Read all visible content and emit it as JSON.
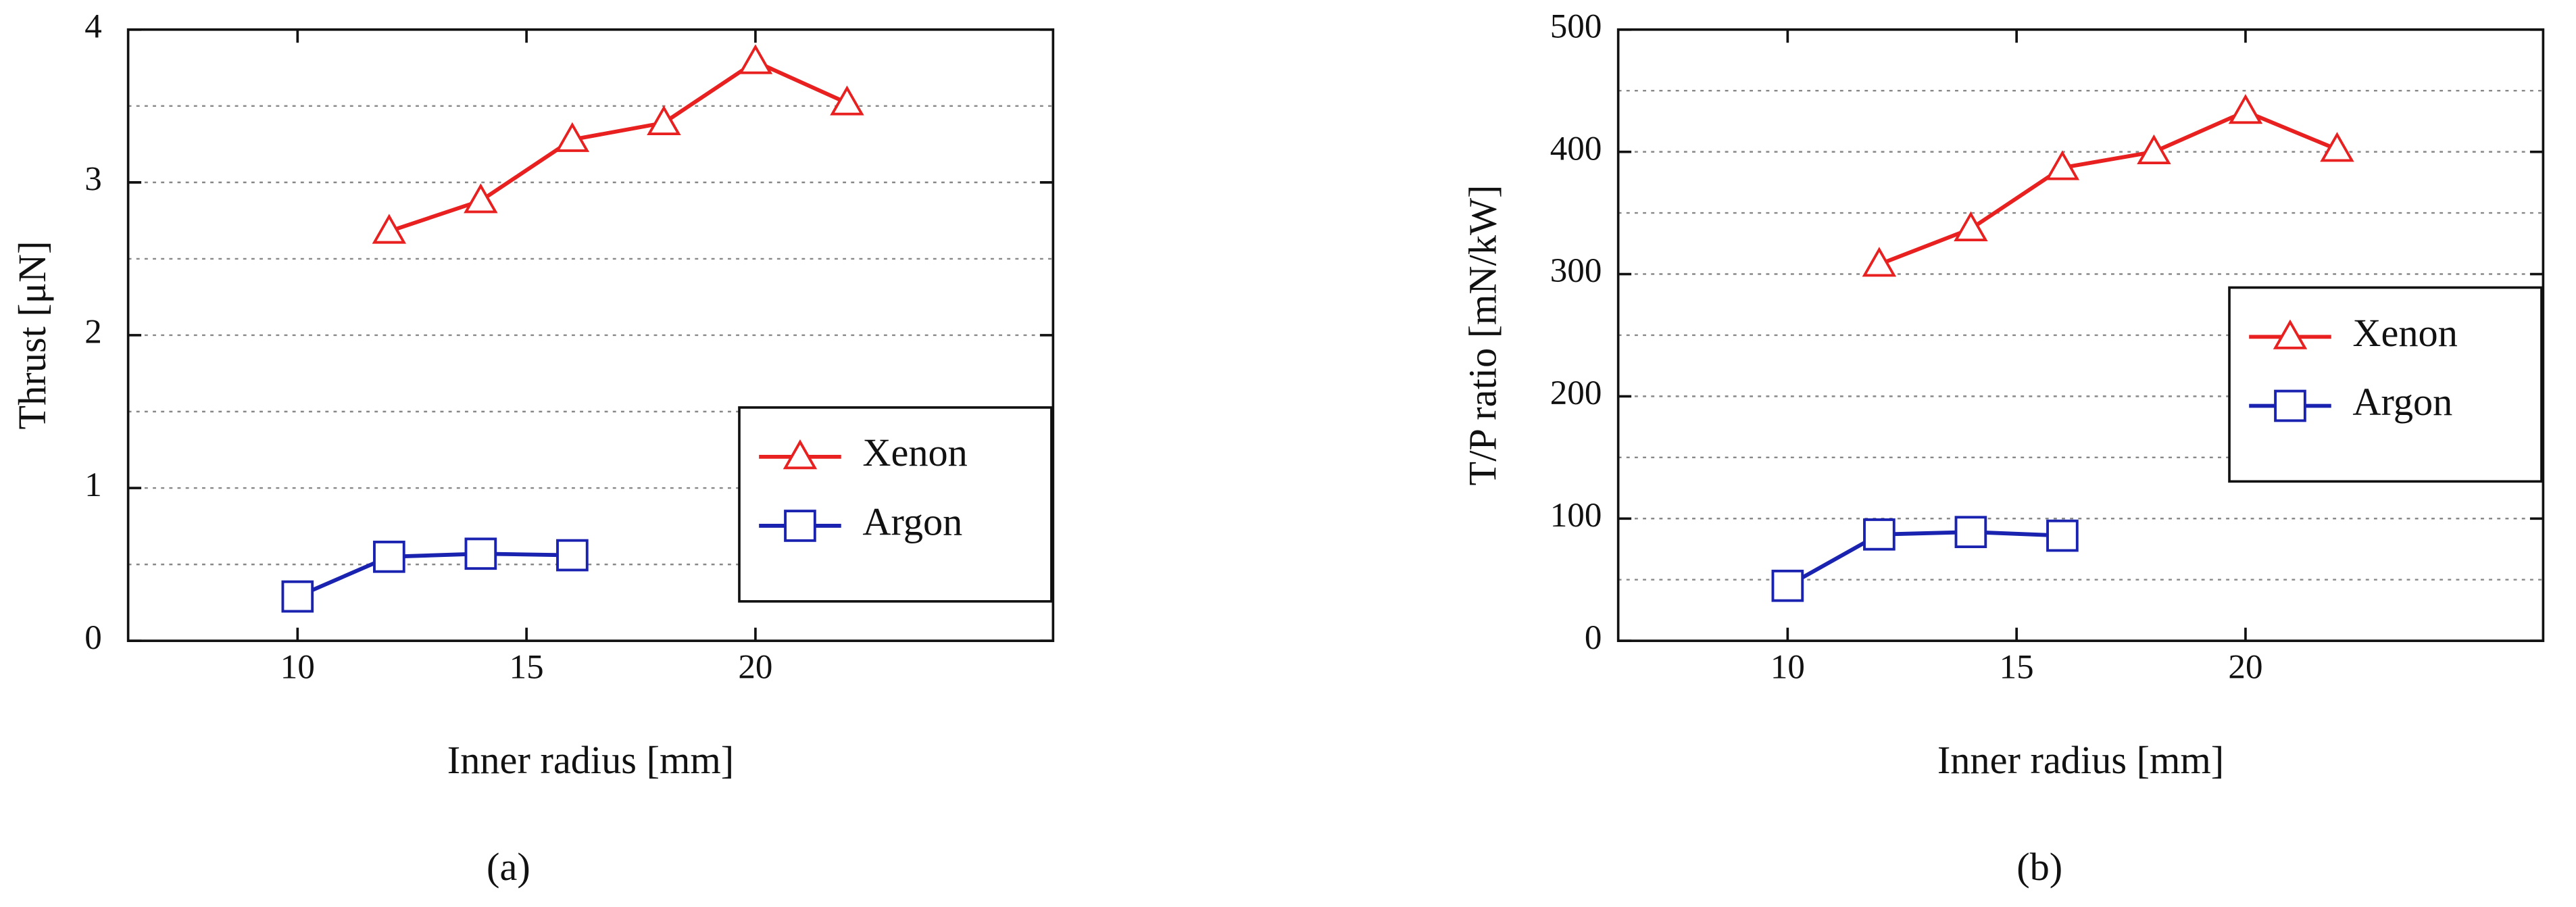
{
  "chart_data": [
    {
      "type": "line",
      "label": "(a)",
      "xlabel": "Inner radius [mm]",
      "ylabel": "Thrust [μN]",
      "xlim": [
        6.3,
        26.5
      ],
      "xticks": [
        10,
        15,
        20
      ],
      "ylim": [
        0,
        4
      ],
      "yticks": [
        0,
        1,
        2,
        3,
        4
      ],
      "grid": true,
      "grid_yticks": [
        0.5,
        1,
        1.5,
        2,
        2.5,
        3,
        3.5
      ],
      "legend": "lower right",
      "series": [
        {
          "name": "Xenon",
          "color": "#e8201f",
          "marker": "triangle",
          "x": [
            12,
            14,
            16,
            18,
            20,
            22
          ],
          "values": [
            2.68,
            2.88,
            3.28,
            3.39,
            3.79,
            3.52
          ]
        },
        {
          "name": "Argon",
          "color": "#1a22b0",
          "marker": "square",
          "x": [
            10,
            12,
            14,
            16
          ],
          "values": [
            0.29,
            0.55,
            0.57,
            0.56
          ]
        }
      ]
    },
    {
      "type": "line",
      "label": "(b)",
      "xlabel": "Inner radius [mm]",
      "ylabel": "T/P ratio [mN/kW]",
      "xlim": [
        6.3,
        26.5
      ],
      "xticks": [
        10,
        15,
        20
      ],
      "ylim": [
        0,
        500
      ],
      "yticks": [
        0,
        100,
        200,
        300,
        400,
        500
      ],
      "grid": true,
      "grid_yticks": [
        50,
        100,
        150,
        200,
        250,
        300,
        350,
        400,
        450
      ],
      "legend": "center right",
      "series": [
        {
          "name": "Xenon",
          "color": "#e8201f",
          "marker": "triangle",
          "x": [
            12,
            14,
            16,
            18,
            20,
            22
          ],
          "values": [
            308,
            337,
            387,
            400,
            433,
            402
          ]
        },
        {
          "name": "Argon",
          "color": "#1a22b0",
          "marker": "square",
          "x": [
            10,
            12,
            14,
            16
          ],
          "values": [
            45,
            87,
            89,
            86
          ]
        }
      ]
    }
  ]
}
